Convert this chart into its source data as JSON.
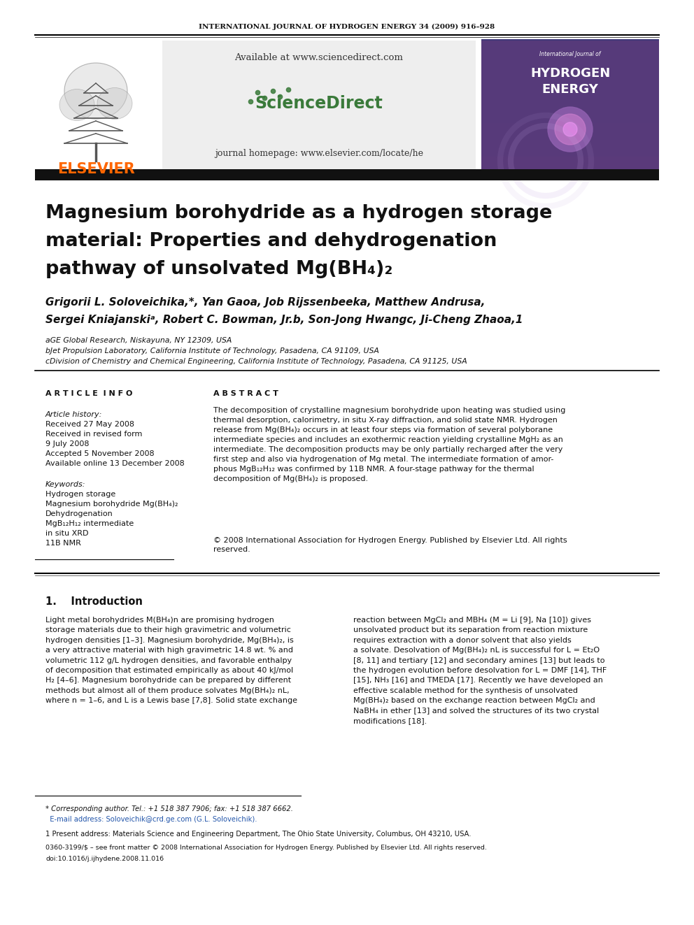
{
  "journal_header": "INTERNATIONAL JOURNAL OF HYDROGEN ENERGY 34 (2009) 916–928",
  "sciencedirect_text": "Available at www.sciencedirect.com",
  "journal_homepage": "journal homepage: www.elsevier.com/locate/he",
  "elsevier_text": "ELSEVIER",
  "sciencedirect_logo": "ScienceDirect",
  "title_line1": "Magnesium borohydride as a hydrogen storage",
  "title_line2": "material: Properties and dehydrogenation",
  "title_line3": "pathway of unsolvated Mg(BH₄)₂",
  "authors": "Grigorii L. Soloveichika,*, Yan Gaoa, Job Rijssenbeeka, Matthew Andrusa,",
  "authors2": "Sergei Kniajanskiᵃ, Robert C. Bowman, Jr.b, Son-Jong Hwangc, Ji-Cheng Zhaoa,1",
  "affil_a": "aGE Global Research, Niskayuna, NY 12309, USA",
  "affil_b": "bJet Propulsion Laboratory, California Institute of Technology, Pasadena, CA 91109, USA",
  "affil_c": "cDivision of Chemistry and Chemical Engineering, California Institute of Technology, Pasadena, CA 91125, USA",
  "article_info_header": "A R T I C L E  I N F O",
  "abstract_header": "A B S T R A C T",
  "article_history_label": "Article history:",
  "received_label": "Received 27 May 2008",
  "received_revised_label": "Received in revised form",
  "received_revised_date": "9 July 2008",
  "accepted_label": "Accepted 5 November 2008",
  "available_label": "Available online 13 December 2008",
  "keywords_label": "Keywords:",
  "keyword1": "Hydrogen storage",
  "keyword2": "Magnesium borohydride Mg(BH₄)₂",
  "keyword3": "Dehydrogenation",
  "keyword4": "MgB₁₂H₁₂ intermediate",
  "keyword5": "in situ XRD",
  "keyword6": "11B NMR",
  "abstract_text": "The decomposition of crystalline magnesium borohydride upon heating was studied using\nthermal desorption, calorimetry, in situ X-ray diffraction, and solid state NMR. Hydrogen\nrelease from Mg(BH₄)₂ occurs in at least four steps via formation of several polyborane\nintermediate species and includes an exothermic reaction yielding crystalline MgH₂ as an\nintermediate. The decomposition products may be only partially recharged after the very\nfirst step and also via hydrogenation of Mg metal. The intermediate formation of amor-\nphous MgB₁₂H₁₂ was confirmed by 11B NMR. A four-stage pathway for the thermal\ndecomposition of Mg(BH₄)₂ is proposed.",
  "copyright_text": "© 2008 International Association for Hydrogen Energy. Published by Elsevier Ltd. All rights\nreserved.",
  "intro_header": "1.    Introduction",
  "intro_text1": "Light metal borohydrides M(BH₄)n are promising hydrogen\nstorage materials due to their high gravimetric and volumetric\nhydrogen densities [1–3]. Magnesium borohydride, Mg(BH₄)₂, is\na very attractive material with high gravimetric 14.8 wt. % and\nvolumetric 112 g/L hydrogen densities, and favorable enthalpy\nof decomposition that estimated empirically as about 40 kJ/mol\nH₂ [4–6]. Magnesium borohydride can be prepared by different\nmethods but almost all of them produce solvates Mg(BH₄)₂ nL,\nwhere n = 1–6, and L is a Lewis base [7,8]. Solid state exchange",
  "intro_text2": "reaction between MgCl₂ and MBH₄ (M = Li [9], Na [10]) gives\nunsolvated product but its separation from reaction mixture\nrequires extraction with a donor solvent that also yields\na solvate. Desolvation of Mg(BH₄)₂ nL is successful for L = Et₂O\n[8, 11] and tertiary [12] and secondary amines [13] but leads to\nthe hydrogen evolution before desolvation for L = DMF [14], THF\n[15], NH₃ [16] and TMEDA [17]. Recently we have developed an\neffective scalable method for the synthesis of unsolvated\nMg(BH₄)₂ based on the exchange reaction between MgCl₂ and\nNaBH₄ in ether [13] and solved the structures of its two crystal\nmodifications [18].",
  "footnote1": "* Corresponding author. Tel.: +1 518 387 7906; fax: +1 518 387 6662.",
  "footnote2": "  E-mail address: Soloveichik@crd.ge.com (G.L. Soloveichik).",
  "footnote3": "1 Present address: Materials Science and Engineering Department, The Ohio State University, Columbus, OH 43210, USA.",
  "footnote4": "0360-3199/$ – see front matter © 2008 International Association for Hydrogen Energy. Published by Elsevier Ltd. All rights reserved.",
  "footnote5": "doi:10.1016/j.ijhydene.2008.11.016",
  "bg_color": "#ffffff",
  "title_color": "#000000",
  "header_bar_color": "#111111",
  "elsevier_color": "#FF6600",
  "blue_color": "#2255aa",
  "sd_bg_color": "#eeeeee",
  "journal_cover_bg": "#5a3a7a"
}
